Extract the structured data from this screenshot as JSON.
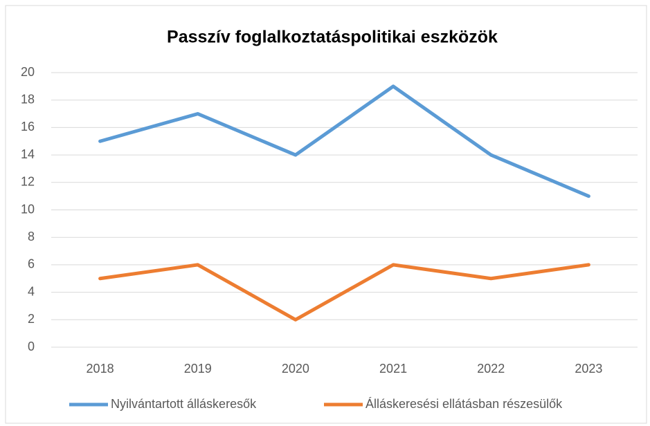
{
  "chart_data": {
    "type": "line",
    "title": "Passzív foglalkoztatáspolitikai eszközök",
    "categories": [
      "2018",
      "2019",
      "2020",
      "2021",
      "2022",
      "2023"
    ],
    "series": [
      {
        "name": "Nyilvántartott álláskeresők",
        "color": "#5b9bd5",
        "values": [
          15,
          17,
          14,
          19,
          14,
          11
        ]
      },
      {
        "name": "Álláskeresési ellátásban részesülők",
        "color": "#ed7d31",
        "values": [
          5,
          6,
          2,
          6,
          5,
          6
        ]
      }
    ],
    "ylim": [
      0,
      20
    ],
    "yticks": [
      0,
      2,
      4,
      6,
      8,
      10,
      12,
      14,
      16,
      18,
      20
    ],
    "grid": true,
    "legend": "bottom"
  }
}
